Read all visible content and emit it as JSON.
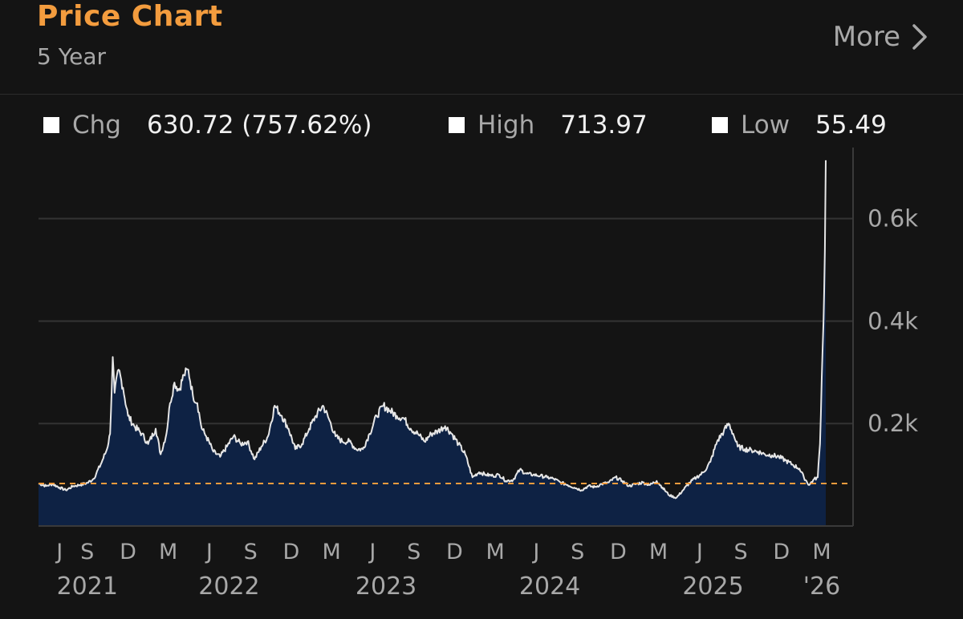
{
  "header": {
    "title": "Price Chart",
    "period": "5 Year",
    "more_label": "More"
  },
  "stats": {
    "chg_label": "Chg",
    "chg_value": "630.72 (757.62%)",
    "high_label": "High",
    "high_value": "713.97",
    "low_label": "Low",
    "low_value": "55.49"
  },
  "colors": {
    "title": "#f39c3e",
    "line": "#e6e6e6",
    "fill": "#0e2244",
    "reference_line": "#f39c3e",
    "grid": "#333333",
    "axis_text": "#a8a8a8"
  },
  "chart_data": {
    "type": "area",
    "ylim": [
      0,
      720
    ],
    "yticks": [
      200,
      400,
      600
    ],
    "ytick_labels": [
      "0.2k",
      "0.4k",
      "0.6k"
    ],
    "grid": true,
    "reference_value": 83,
    "x_month_ticks": [
      {
        "date": "2021-07-01",
        "label": "J"
      },
      {
        "date": "2021-09-01",
        "label": "S"
      },
      {
        "date": "2021-12-01",
        "label": "D"
      },
      {
        "date": "2022-03-01",
        "label": "M"
      },
      {
        "date": "2022-06-01",
        "label": "J"
      },
      {
        "date": "2022-09-01",
        "label": "S"
      },
      {
        "date": "2022-12-01",
        "label": "D"
      },
      {
        "date": "2023-03-01",
        "label": "M"
      },
      {
        "date": "2023-06-01",
        "label": "J"
      },
      {
        "date": "2023-09-01",
        "label": "S"
      },
      {
        "date": "2023-12-01",
        "label": "D"
      },
      {
        "date": "2024-03-01",
        "label": "M"
      },
      {
        "date": "2024-06-01",
        "label": "J"
      },
      {
        "date": "2024-09-01",
        "label": "S"
      },
      {
        "date": "2024-12-01",
        "label": "D"
      },
      {
        "date": "2025-03-01",
        "label": "M"
      },
      {
        "date": "2025-06-01",
        "label": "J"
      },
      {
        "date": "2025-09-01",
        "label": "S"
      },
      {
        "date": "2025-12-01",
        "label": "D"
      },
      {
        "date": "2026-03-01",
        "label": "M"
      }
    ],
    "x_year_labels": [
      {
        "date": "2021-09-01",
        "label": "2021"
      },
      {
        "date": "2022-07-15",
        "label": "2022"
      },
      {
        "date": "2023-07-01",
        "label": "2023"
      },
      {
        "date": "2024-07-01",
        "label": "2024"
      },
      {
        "date": "2025-07-01",
        "label": "2025"
      },
      {
        "date": "2026-03-01",
        "label": "'26"
      }
    ],
    "series": [
      {
        "points": [
          [
            "2021-05-15",
            83
          ],
          [
            "2021-06-01",
            78
          ],
          [
            "2021-06-15",
            82
          ],
          [
            "2021-07-01",
            75
          ],
          [
            "2021-07-15",
            70
          ],
          [
            "2021-08-01",
            78
          ],
          [
            "2021-08-15",
            80
          ],
          [
            "2021-09-01",
            84
          ],
          [
            "2021-09-15",
            92
          ],
          [
            "2021-10-01",
            120
          ],
          [
            "2021-10-15",
            150
          ],
          [
            "2021-10-22",
            180
          ],
          [
            "2021-10-28",
            330
          ],
          [
            "2021-11-01",
            260
          ],
          [
            "2021-11-10",
            305
          ],
          [
            "2021-11-20",
            270
          ],
          [
            "2021-12-01",
            215
          ],
          [
            "2021-12-15",
            195
          ],
          [
            "2022-01-01",
            180
          ],
          [
            "2022-01-15",
            160
          ],
          [
            "2022-02-01",
            190
          ],
          [
            "2022-02-12",
            140
          ],
          [
            "2022-02-25",
            180
          ],
          [
            "2022-03-05",
            240
          ],
          [
            "2022-03-15",
            280
          ],
          [
            "2022-03-25",
            265
          ],
          [
            "2022-04-05",
            295
          ],
          [
            "2022-04-15",
            305
          ],
          [
            "2022-04-25",
            255
          ],
          [
            "2022-05-05",
            240
          ],
          [
            "2022-05-15",
            190
          ],
          [
            "2022-05-25",
            175
          ],
          [
            "2022-06-10",
            145
          ],
          [
            "2022-06-25",
            135
          ],
          [
            "2022-07-10",
            155
          ],
          [
            "2022-07-25",
            175
          ],
          [
            "2022-08-10",
            160
          ],
          [
            "2022-08-25",
            165
          ],
          [
            "2022-09-10",
            130
          ],
          [
            "2022-09-25",
            155
          ],
          [
            "2022-10-10",
            175
          ],
          [
            "2022-10-25",
            235
          ],
          [
            "2022-11-10",
            215
          ],
          [
            "2022-11-25",
            190
          ],
          [
            "2022-12-10",
            150
          ],
          [
            "2022-12-25",
            160
          ],
          [
            "2023-01-10",
            190
          ],
          [
            "2023-01-25",
            215
          ],
          [
            "2023-02-10",
            235
          ],
          [
            "2023-02-25",
            205
          ],
          [
            "2023-03-10",
            175
          ],
          [
            "2023-03-25",
            165
          ],
          [
            "2023-04-10",
            165
          ],
          [
            "2023-04-25",
            150
          ],
          [
            "2023-05-10",
            150
          ],
          [
            "2023-05-25",
            180
          ],
          [
            "2023-06-10",
            215
          ],
          [
            "2023-06-25",
            235
          ],
          [
            "2023-07-10",
            225
          ],
          [
            "2023-07-25",
            215
          ],
          [
            "2023-08-10",
            210
          ],
          [
            "2023-08-25",
            190
          ],
          [
            "2023-09-10",
            180
          ],
          [
            "2023-09-25",
            165
          ],
          [
            "2023-10-10",
            180
          ],
          [
            "2023-10-25",
            185
          ],
          [
            "2023-11-10",
            195
          ],
          [
            "2023-11-25",
            180
          ],
          [
            "2023-12-10",
            160
          ],
          [
            "2023-12-25",
            140
          ],
          [
            "2024-01-10",
            95
          ],
          [
            "2024-01-25",
            105
          ],
          [
            "2024-02-10",
            100
          ],
          [
            "2024-02-25",
            98
          ],
          [
            "2024-03-10",
            100
          ],
          [
            "2024-03-25",
            88
          ],
          [
            "2024-04-10",
            90
          ],
          [
            "2024-04-25",
            110
          ],
          [
            "2024-05-10",
            102
          ],
          [
            "2024-05-25",
            100
          ],
          [
            "2024-06-10",
            98
          ],
          [
            "2024-06-25",
            95
          ],
          [
            "2024-07-10",
            92
          ],
          [
            "2024-07-25",
            85
          ],
          [
            "2024-08-10",
            80
          ],
          [
            "2024-08-25",
            75
          ],
          [
            "2024-09-10",
            70
          ],
          [
            "2024-09-25",
            78
          ],
          [
            "2024-10-10",
            76
          ],
          [
            "2024-10-25",
            82
          ],
          [
            "2024-11-10",
            85
          ],
          [
            "2024-11-25",
            95
          ],
          [
            "2024-12-10",
            88
          ],
          [
            "2024-12-25",
            78
          ],
          [
            "2025-01-10",
            82
          ],
          [
            "2025-01-25",
            85
          ],
          [
            "2025-02-10",
            80
          ],
          [
            "2025-02-25",
            88
          ],
          [
            "2025-03-10",
            75
          ],
          [
            "2025-03-25",
            60
          ],
          [
            "2025-04-10",
            55
          ],
          [
            "2025-04-25",
            70
          ],
          [
            "2025-05-10",
            85
          ],
          [
            "2025-05-25",
            95
          ],
          [
            "2025-06-10",
            105
          ],
          [
            "2025-06-25",
            125
          ],
          [
            "2025-07-10",
            165
          ],
          [
            "2025-07-25",
            185
          ],
          [
            "2025-08-05",
            200
          ],
          [
            "2025-08-15",
            180
          ],
          [
            "2025-08-25",
            155
          ],
          [
            "2025-09-10",
            150
          ],
          [
            "2025-09-25",
            148
          ],
          [
            "2025-10-10",
            145
          ],
          [
            "2025-10-25",
            140
          ],
          [
            "2025-11-10",
            138
          ],
          [
            "2025-11-25",
            135
          ],
          [
            "2025-12-10",
            128
          ],
          [
            "2025-12-25",
            120
          ],
          [
            "2026-01-10",
            112
          ],
          [
            "2026-01-20",
            95
          ],
          [
            "2026-02-01",
            80
          ],
          [
            "2026-02-10",
            90
          ],
          [
            "2026-02-20",
            95
          ],
          [
            "2026-02-25",
            160
          ],
          [
            "2026-03-01",
            290
          ],
          [
            "2026-03-05",
            400
          ],
          [
            "2026-03-08",
            540
          ],
          [
            "2026-03-10",
            713.97
          ]
        ]
      }
    ]
  }
}
